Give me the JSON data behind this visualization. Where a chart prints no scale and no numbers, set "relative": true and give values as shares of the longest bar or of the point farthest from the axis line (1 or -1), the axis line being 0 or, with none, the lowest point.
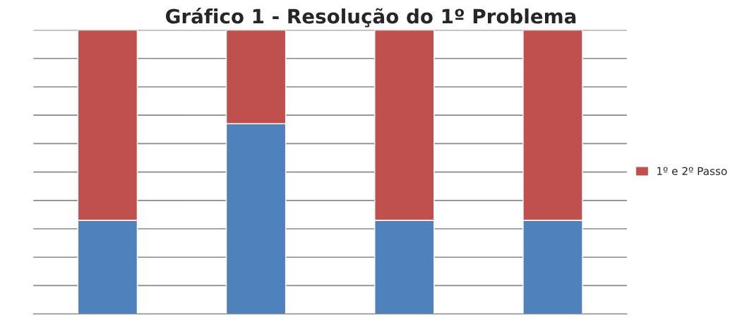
{
  "chart_data": {
    "type": "bar",
    "title": "Gráfico 1 - Resolução do 1º Problema",
    "categories": [
      null,
      null,
      null,
      null
    ],
    "relative": true,
    "stacked": true,
    "grid": "y",
    "legend": "right",
    "series": [
      {
        "color": "#4f81bd",
        "values": [
          0.33,
          0.67,
          0.33,
          0.33
        ]
      },
      {
        "name": "1º e 2º Passo",
        "color": "#c0504d",
        "values": [
          0.67,
          0.33,
          0.67,
          0.67
        ]
      }
    ]
  }
}
